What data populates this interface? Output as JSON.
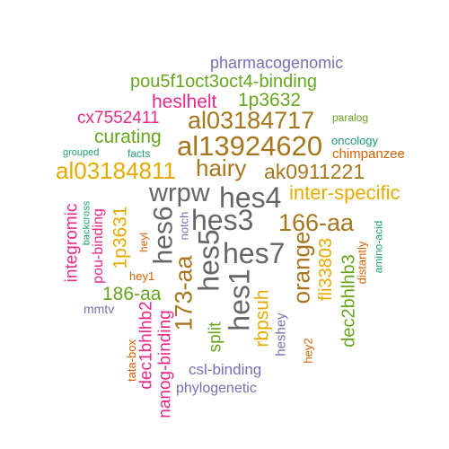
{
  "palette": {
    "teal": "#1b9e77",
    "orange": "#d95f02",
    "purple": "#7570b3",
    "magenta": "#e7298a",
    "green": "#66a61e",
    "gold": "#e6ab02",
    "brown": "#a6761d",
    "gray": "#666666"
  },
  "words": [
    {
      "text": "pharmacogenomic",
      "color": "purple"
    },
    {
      "text": "pou5f1oct3oct4-binding",
      "color": "green"
    },
    {
      "text": "heslhelt",
      "color": "magenta"
    },
    {
      "text": "1p3632",
      "color": "green"
    },
    {
      "text": "cx7552411",
      "color": "magenta"
    },
    {
      "text": "al03184717",
      "color": "brown"
    },
    {
      "text": "paralog",
      "color": "green"
    },
    {
      "text": "curating",
      "color": "green"
    },
    {
      "text": "al13924620",
      "color": "brown"
    },
    {
      "text": "oncology",
      "color": "teal"
    },
    {
      "text": "grouped",
      "color": "teal"
    },
    {
      "text": "facts",
      "color": "teal"
    },
    {
      "text": "chimpanzee",
      "color": "orange"
    },
    {
      "text": "hairy",
      "color": "brown"
    },
    {
      "text": "al03184811",
      "color": "gold"
    },
    {
      "text": "ak0911221",
      "color": "brown"
    },
    {
      "text": "wrpw",
      "color": "gray"
    },
    {
      "text": "hes4",
      "color": "gray"
    },
    {
      "text": "inter-specific",
      "color": "gold"
    },
    {
      "text": "hes6",
      "color": "gray"
    },
    {
      "text": "hes3",
      "color": "gray"
    },
    {
      "text": "166-aa",
      "color": "brown"
    },
    {
      "text": "integromic",
      "color": "magenta"
    },
    {
      "text": "backcross",
      "color": "teal"
    },
    {
      "text": "pou-binding",
      "color": "magenta"
    },
    {
      "text": "1p3631",
      "color": "gold"
    },
    {
      "text": "heyl",
      "color": "orange"
    },
    {
      "text": "notch",
      "color": "purple"
    },
    {
      "text": "hes5",
      "color": "gray"
    },
    {
      "text": "hes7",
      "color": "gray"
    },
    {
      "text": "orange",
      "color": "brown"
    },
    {
      "text": "fli33803",
      "color": "gold"
    },
    {
      "text": "distantly",
      "color": "orange"
    },
    {
      "text": "amino-acid",
      "color": "teal"
    },
    {
      "text": "hey1",
      "color": "orange"
    },
    {
      "text": "173-aa",
      "color": "brown"
    },
    {
      "text": "hes1",
      "color": "gray"
    },
    {
      "text": "186-aa",
      "color": "green"
    },
    {
      "text": "mmtv",
      "color": "purple"
    },
    {
      "text": "dec1bhlhb2",
      "color": "magenta"
    },
    {
      "text": "rbpsuh",
      "color": "gold"
    },
    {
      "text": "dec2bhlhb3",
      "color": "green"
    },
    {
      "text": "split",
      "color": "green"
    },
    {
      "text": "heshey",
      "color": "purple"
    },
    {
      "text": "hey2",
      "color": "orange"
    },
    {
      "text": "tata-box",
      "color": "orange"
    },
    {
      "text": "nanog-binding",
      "color": "magenta"
    },
    {
      "text": "csl-binding",
      "color": "purple"
    },
    {
      "text": "phylogenetic",
      "color": "purple"
    }
  ]
}
